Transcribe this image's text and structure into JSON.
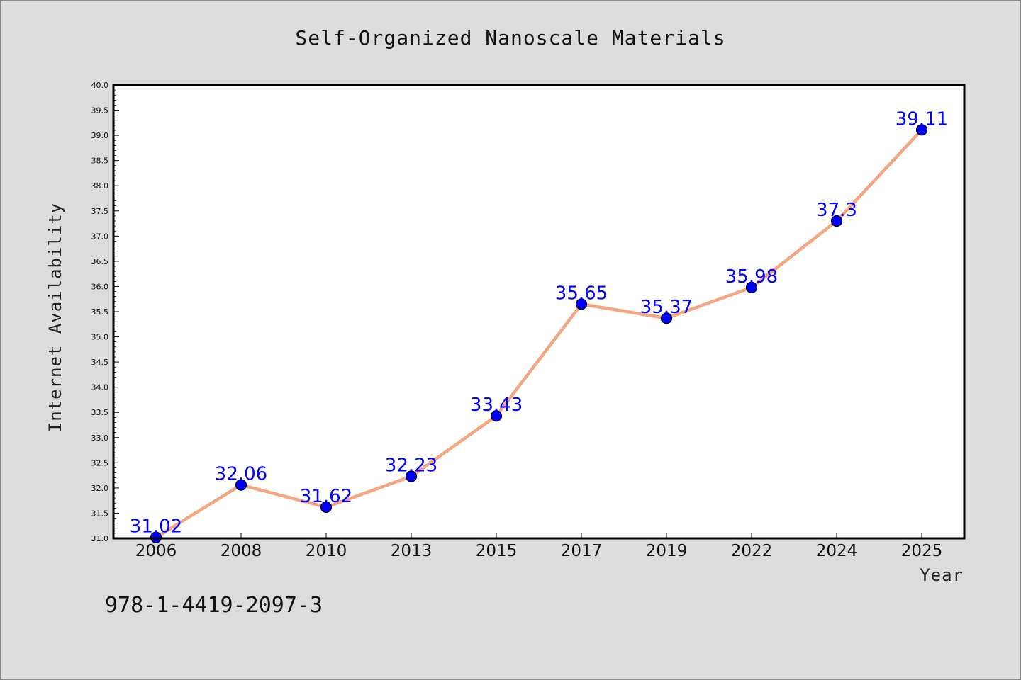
{
  "chart_data": {
    "type": "line",
    "title": "Self-Organized Nanoscale Materials",
    "xlabel": "Year",
    "ylabel": "Internet Availability",
    "categories": [
      "2006",
      "2008",
      "2010",
      "2013",
      "2015",
      "2017",
      "2019",
      "2022",
      "2024",
      "2025"
    ],
    "series": [
      {
        "values": [
          31.02,
          32.06,
          31.62,
          32.23,
          33.43,
          35.65,
          35.37,
          35.98,
          37.3,
          39.11
        ],
        "data_labels": [
          "31.02",
          "32.06",
          "31.62",
          "32.23",
          "33.43",
          "35.65",
          "35.37",
          "35.98",
          "37.3",
          "39.11"
        ]
      }
    ],
    "ylim": [
      31.0,
      40.0
    ],
    "yticks": [
      "31.0",
      "31.5",
      "32.0",
      "32.5",
      "33.0",
      "33.5",
      "34.0",
      "34.5",
      "35.0",
      "35.5",
      "36.0",
      "36.5",
      "37.0",
      "37.5",
      "38.0",
      "38.5",
      "39.0",
      "39.5",
      "40.0"
    ],
    "grid": false,
    "legend": "none",
    "colors": {
      "line": "#f4a582",
      "marker": "#0000ff",
      "label": "#0000ff",
      "background": "#dcdcdc",
      "plot_background": "#ffffff"
    }
  },
  "annotation": "978-1-4419-2097-3"
}
